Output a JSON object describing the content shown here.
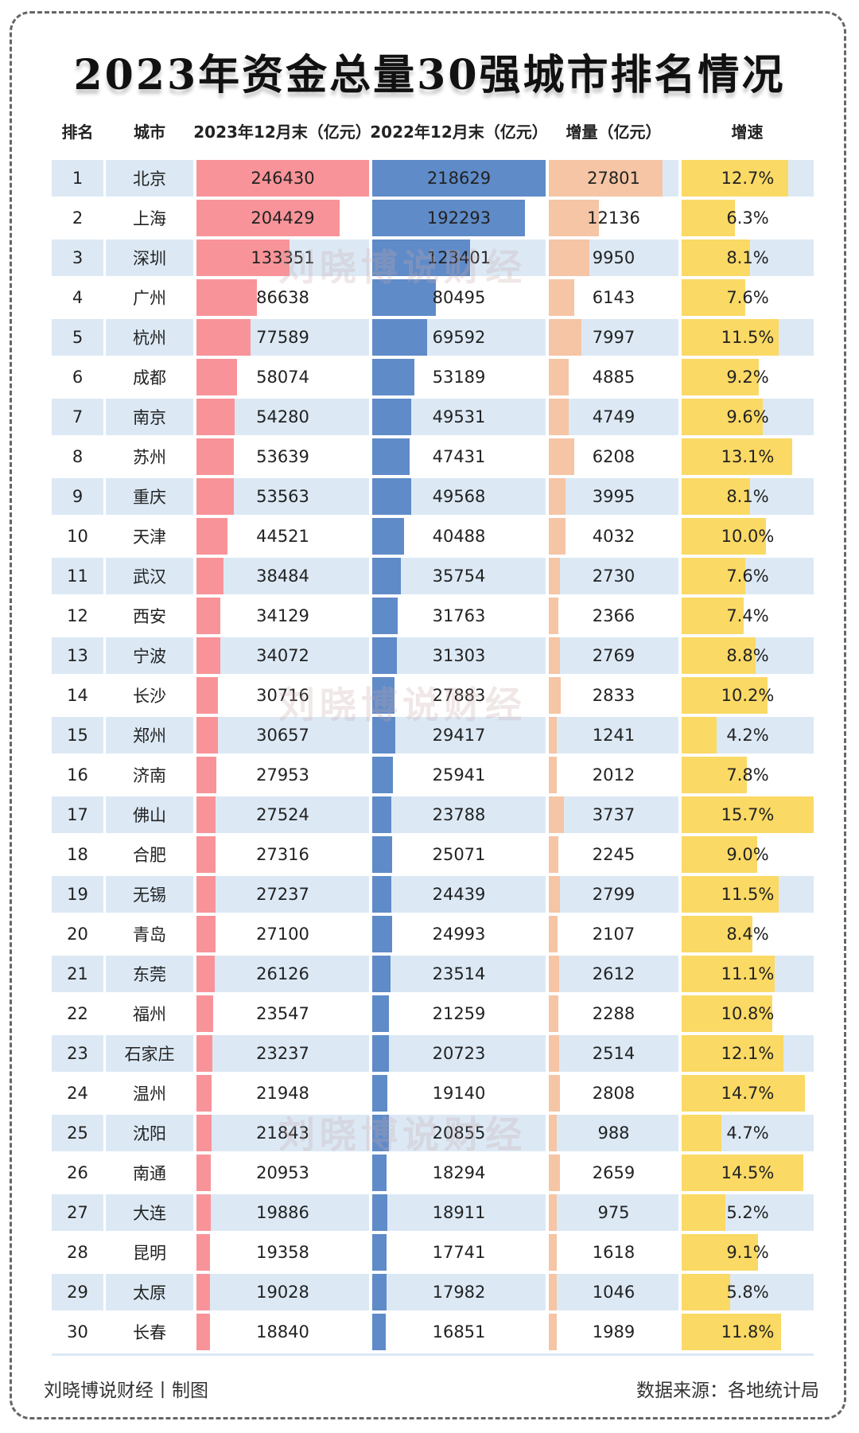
{
  "title": "2023年资金总量30强城市排名情况",
  "watermark": "刘晓博说财经",
  "footer": {
    "left": "刘晓博说财经丨制图",
    "right": "数据来源：各地统计局"
  },
  "colors": {
    "col2023": "#f89499",
    "col2022": "#5f8bc8",
    "increase": "#f5c5a5",
    "growth": "#fad965",
    "alt_row": "#dce9f5"
  },
  "chart_data": {
    "type": "table",
    "title": "2023年资金总量30强城市排名情况",
    "columns": [
      "排名",
      "城市",
      "2023年12月末（亿元）",
      "2022年12月末（亿元）",
      "增量（亿元）",
      "增速"
    ],
    "rows": [
      {
        "rank": "1",
        "city": "北京",
        "v2023": "246430",
        "v2022": "218629",
        "inc": "27801",
        "growth": "12.7%"
      },
      {
        "rank": "2",
        "city": "上海",
        "v2023": "204429",
        "v2022": "192293",
        "inc": "12136",
        "growth": "6.3%"
      },
      {
        "rank": "3",
        "city": "深圳",
        "v2023": "133351",
        "v2022": "123401",
        "inc": "9950",
        "growth": "8.1%"
      },
      {
        "rank": "4",
        "city": "广州",
        "v2023": "86638",
        "v2022": "80495",
        "inc": "6143",
        "growth": "7.6%"
      },
      {
        "rank": "5",
        "city": "杭州",
        "v2023": "77589",
        "v2022": "69592",
        "inc": "7997",
        "growth": "11.5%"
      },
      {
        "rank": "6",
        "city": "成都",
        "v2023": "58074",
        "v2022": "53189",
        "inc": "4885",
        "growth": "9.2%"
      },
      {
        "rank": "7",
        "city": "南京",
        "v2023": "54280",
        "v2022": "49531",
        "inc": "4749",
        "growth": "9.6%"
      },
      {
        "rank": "8",
        "city": "苏州",
        "v2023": "53639",
        "v2022": "47431",
        "inc": "6208",
        "growth": "13.1%"
      },
      {
        "rank": "9",
        "city": "重庆",
        "v2023": "53563",
        "v2022": "49568",
        "inc": "3995",
        "growth": "8.1%"
      },
      {
        "rank": "10",
        "city": "天津",
        "v2023": "44521",
        "v2022": "40488",
        "inc": "4032",
        "growth": "10.0%"
      },
      {
        "rank": "11",
        "city": "武汉",
        "v2023": "38484",
        "v2022": "35754",
        "inc": "2730",
        "growth": "7.6%"
      },
      {
        "rank": "12",
        "city": "西安",
        "v2023": "34129",
        "v2022": "31763",
        "inc": "2366",
        "growth": "7.4%"
      },
      {
        "rank": "13",
        "city": "宁波",
        "v2023": "34072",
        "v2022": "31303",
        "inc": "2769",
        "growth": "8.8%"
      },
      {
        "rank": "14",
        "city": "长沙",
        "v2023": "30716",
        "v2022": "27883",
        "inc": "2833",
        "growth": "10.2%"
      },
      {
        "rank": "15",
        "city": "郑州",
        "v2023": "30657",
        "v2022": "29417",
        "inc": "1241",
        "growth": "4.2%"
      },
      {
        "rank": "16",
        "city": "济南",
        "v2023": "27953",
        "v2022": "25941",
        "inc": "2012",
        "growth": "7.8%"
      },
      {
        "rank": "17",
        "city": "佛山",
        "v2023": "27524",
        "v2022": "23788",
        "inc": "3737",
        "growth": "15.7%"
      },
      {
        "rank": "18",
        "city": "合肥",
        "v2023": "27316",
        "v2022": "25071",
        "inc": "2245",
        "growth": "9.0%"
      },
      {
        "rank": "19",
        "city": "无锡",
        "v2023": "27237",
        "v2022": "24439",
        "inc": "2799",
        "growth": "11.5%"
      },
      {
        "rank": "20",
        "city": "青岛",
        "v2023": "27100",
        "v2022": "24993",
        "inc": "2107",
        "growth": "8.4%"
      },
      {
        "rank": "21",
        "city": "东莞",
        "v2023": "26126",
        "v2022": "23514",
        "inc": "2612",
        "growth": "11.1%"
      },
      {
        "rank": "22",
        "city": "福州",
        "v2023": "23547",
        "v2022": "21259",
        "inc": "2288",
        "growth": "10.8%"
      },
      {
        "rank": "23",
        "city": "石家庄",
        "v2023": "23237",
        "v2022": "20723",
        "inc": "2514",
        "growth": "12.1%"
      },
      {
        "rank": "24",
        "city": "温州",
        "v2023": "21948",
        "v2022": "19140",
        "inc": "2808",
        "growth": "14.7%"
      },
      {
        "rank": "25",
        "city": "沈阳",
        "v2023": "21843",
        "v2022": "20855",
        "inc": "988",
        "growth": "4.7%"
      },
      {
        "rank": "26",
        "city": "南通",
        "v2023": "20953",
        "v2022": "18294",
        "inc": "2659",
        "growth": "14.5%"
      },
      {
        "rank": "27",
        "city": "大连",
        "v2023": "19886",
        "v2022": "18911",
        "inc": "975",
        "growth": "5.2%"
      },
      {
        "rank": "28",
        "city": "昆明",
        "v2023": "19358",
        "v2022": "17741",
        "inc": "1618",
        "growth": "9.1%"
      },
      {
        "rank": "29",
        "city": "太原",
        "v2023": "19028",
        "v2022": "17982",
        "inc": "1046",
        "growth": "5.8%"
      },
      {
        "rank": "30",
        "city": "长春",
        "v2023": "18840",
        "v2022": "16851",
        "inc": "1989",
        "growth": "11.8%"
      }
    ]
  }
}
